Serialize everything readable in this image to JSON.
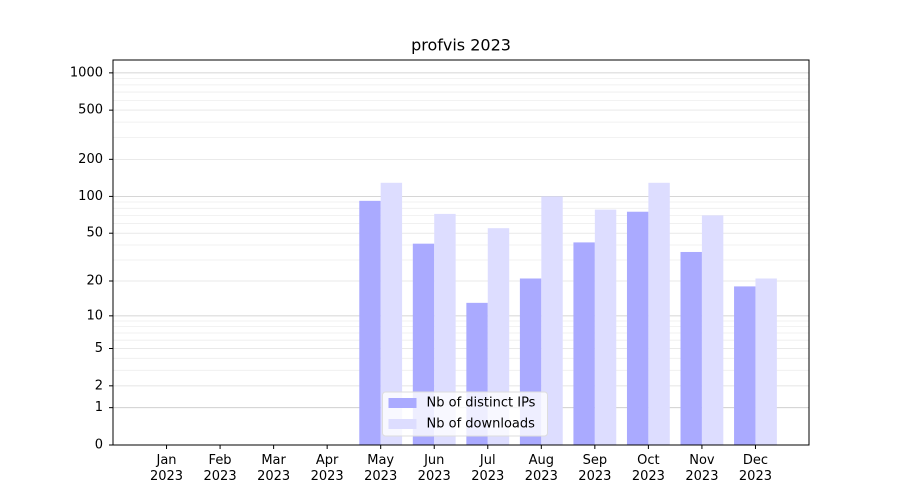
{
  "chart_data": {
    "type": "bar",
    "title": "profvis 2023",
    "categories": [
      "Jan\n2023",
      "Feb\n2023",
      "Mar\n2023",
      "Apr\n2023",
      "May\n2023",
      "Jun\n2023",
      "Jul\n2023",
      "Aug\n2023",
      "Sep\n2023",
      "Oct\n2023",
      "Nov\n2023",
      "Dec\n2023"
    ],
    "series": [
      {
        "name": "Nb of distinct IPs",
        "color": "#aaaaff",
        "values": [
          0,
          0,
          0,
          0,
          92,
          41,
          13,
          21,
          42,
          75,
          35,
          18
        ]
      },
      {
        "name": "Nb of downloads",
        "color": "#ddddff",
        "values": [
          0,
          0,
          0,
          0,
          129,
          72,
          55,
          100,
          78,
          129,
          70,
          21
        ]
      }
    ],
    "yscale": "log1p",
    "ylim": [
      0,
      1270
    ],
    "yticks": [
      0,
      1,
      2,
      5,
      10,
      20,
      50,
      100,
      200,
      500,
      1000
    ],
    "grid": true,
    "legend": "lower center"
  }
}
